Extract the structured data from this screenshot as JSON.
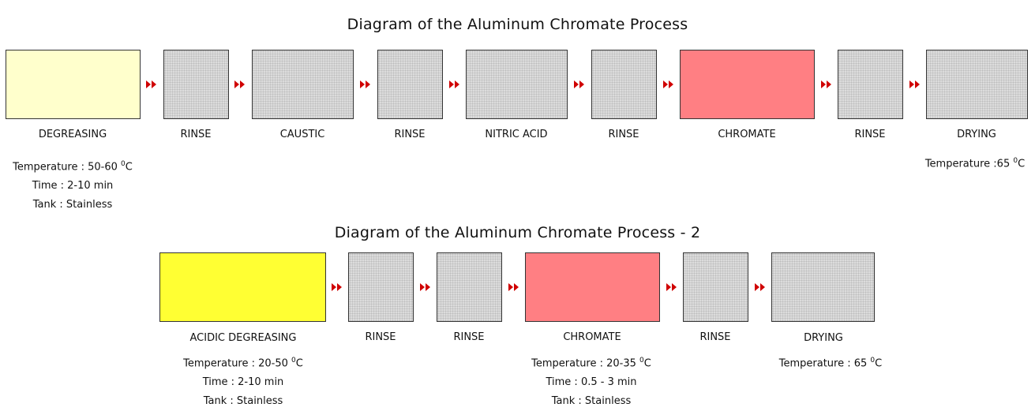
{
  "diagram1": {
    "title": "Diagram of the Aluminum Chromate Process",
    "steps": [
      {
        "label": "DEGREASING",
        "color": "#ffffcc"
      },
      {
        "label": "RINSE",
        "color": "#dcdcdc"
      },
      {
        "label": "CAUSTIC",
        "color": "#dcdcdc"
      },
      {
        "label": "RINSE",
        "color": "#dcdcdc"
      },
      {
        "label": "NITRIC ACID",
        "color": "#dcdcdc"
      },
      {
        "label": "RINSE",
        "color": "#dcdcdc"
      },
      {
        "label": "CHROMATE",
        "color": "#ff7f83"
      },
      {
        "label": "RINSE",
        "color": "#dcdcdc"
      },
      {
        "label": "DRYING",
        "color": "#dcdcdc"
      }
    ],
    "degreasing_details": {
      "temperature_prefix": "Temperature : 50-60 ",
      "temperature_unit": "C",
      "time": "Time : 2-10 min",
      "tank": "Tank : Stainless"
    },
    "drying_details": {
      "temperature_prefix": "Temperature :65 ",
      "temperature_unit": "C"
    }
  },
  "diagram2": {
    "title": "Diagram of the Aluminum Chromate Process - 2",
    "steps": [
      {
        "label": "ACIDIC DEGREASING",
        "color": "#ffff33"
      },
      {
        "label": "RINSE",
        "color": "#dcdcdc"
      },
      {
        "label": "RINSE",
        "color": "#dcdcdc"
      },
      {
        "label": "CHROMATE",
        "color": "#ff7f83"
      },
      {
        "label": "RINSE",
        "color": "#dcdcdc"
      },
      {
        "label": "DRYING",
        "color": "#dcdcdc"
      }
    ],
    "degreasing_details": {
      "temperature_prefix": "Temperature : 20-50 ",
      "temperature_unit": "C",
      "time": "Time : 2-10 min",
      "tank": "Tank : Stainless"
    },
    "chromate_details": {
      "temperature_prefix": "Temperature : 20-35 ",
      "temperature_unit": "C",
      "time": "Time : 0.5 - 3 min",
      "tank": "Tank : Stainless"
    },
    "drying_details": {
      "temperature_prefix": "Temperature : 65 ",
      "temperature_unit": "C"
    }
  },
  "degree_symbol": "0",
  "arrow_color": "#cc0000"
}
